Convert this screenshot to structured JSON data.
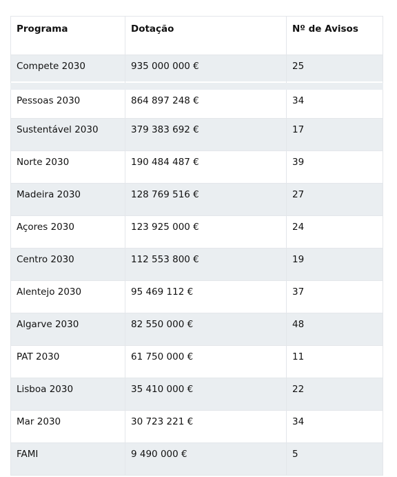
{
  "table": {
    "headers": [
      "Programa",
      "Dotação",
      "Nº de Avisos"
    ],
    "rows": [
      [
        "Compete 2030",
        "935 000 000 €",
        "25"
      ],
      [
        "Pessoas 2030",
        "864 897 248 €",
        "34"
      ],
      [
        "Sustentável 2030",
        "379 383 692 €",
        "17"
      ],
      [
        "Norte 2030",
        "190 484 487 €",
        "39"
      ],
      [
        "Madeira 2030",
        "128 769 516 €",
        "27"
      ],
      [
        "Açores 2030",
        "123 925 000 €",
        "24"
      ],
      [
        "Centro 2030",
        "112 553 800 €",
        "19"
      ],
      [
        "Alentejo 2030",
        "95 469 112 €",
        "37"
      ],
      [
        "Algarve 2030",
        "82 550 000 €",
        "48"
      ],
      [
        "PAT 2030",
        "61 750 000 €",
        "11"
      ],
      [
        "Lisboa 2030",
        "35 410 000 €",
        "22"
      ],
      [
        "Mar 2030",
        "30 723 221 €",
        "34"
      ],
      [
        "FAMI",
        "9 490 000 €",
        "5"
      ]
    ]
  },
  "colors": {
    "row_shade": "#eaeef1",
    "border": "#e3e6ea",
    "text": "#111111"
  }
}
